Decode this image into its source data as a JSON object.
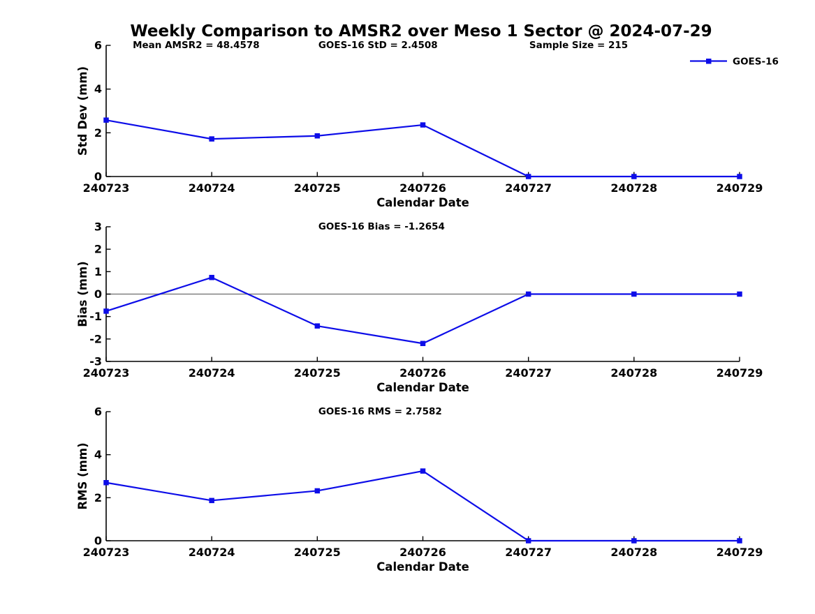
{
  "title": "Weekly Comparison to AMSR2 over Meso 1 Sector @ 2024-07-29",
  "legend": {
    "label": "GOES-16",
    "marker": "filled-square"
  },
  "colors": {
    "line": "#0d0de8",
    "axis": "#000000",
    "zero_line": "#808080",
    "background": "#ffffff",
    "text": "#000000"
  },
  "chart_data": [
    {
      "type": "line",
      "categories": [
        "240723",
        "240724",
        "240725",
        "240726",
        "240727",
        "240728",
        "240729"
      ],
      "series": [
        {
          "name": "GOES-16",
          "values": [
            2.58,
            1.72,
            1.86,
            2.36,
            0,
            0,
            0
          ]
        }
      ],
      "xlabel": "Calendar Date",
      "ylabel": "Std Dev (mm)",
      "ylim": [
        0,
        6
      ],
      "yticks": [
        0,
        2,
        4,
        6
      ],
      "grid": false,
      "zero_line": false,
      "legend_position": "top-right",
      "annotations": [
        {
          "text": "Mean AMSR2 = 48.4578",
          "x": 0.042
        },
        {
          "text": "GOES-16 StD = 2.4508",
          "x": 0.335
        },
        {
          "text": "Sample Size = 215",
          "x": 0.668
        }
      ]
    },
    {
      "type": "line",
      "categories": [
        "240723",
        "240724",
        "240725",
        "240726",
        "240727",
        "240728",
        "240729"
      ],
      "series": [
        {
          "name": "GOES-16",
          "values": [
            -0.76,
            0.74,
            -1.42,
            -2.2,
            0,
            0,
            0
          ]
        }
      ],
      "xlabel": "Calendar Date",
      "ylabel": "Bias (mm)",
      "ylim": [
        -3,
        3
      ],
      "yticks": [
        -3,
        -2,
        -1,
        0,
        1,
        2,
        3
      ],
      "grid": false,
      "zero_line": true,
      "annotations": [
        {
          "text": "GOES-16 Bias  = -1.2654",
          "x": 0.335
        }
      ]
    },
    {
      "type": "line",
      "categories": [
        "240723",
        "240724",
        "240725",
        "240726",
        "240727",
        "240728",
        "240729"
      ],
      "series": [
        {
          "name": "GOES-16",
          "values": [
            2.7,
            1.87,
            2.32,
            3.24,
            0,
            0,
            0
          ]
        }
      ],
      "xlabel": "Calendar Date",
      "ylabel": "RMS (mm)",
      "ylim": [
        0,
        6
      ],
      "yticks": [
        0,
        2,
        4,
        6
      ],
      "grid": false,
      "zero_line": false,
      "annotations": [
        {
          "text": "GOES-16 RMS = 2.7582",
          "x": 0.335
        }
      ]
    }
  ]
}
